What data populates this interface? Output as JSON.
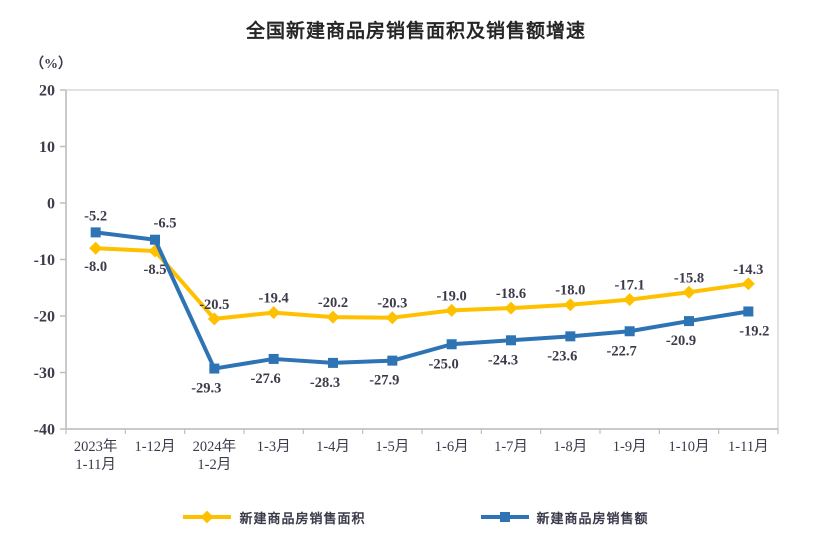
{
  "title": "全国新建商品房销售面积及销售额增速",
  "unit_label": "（%）",
  "chart_data": {
    "type": "line",
    "categories": [
      "2023年\n1-11月",
      "1-12月",
      "2024年\n1-2月",
      "1-3月",
      "1-4月",
      "1-5月",
      "1-6月",
      "1-7月",
      "1-8月",
      "1-9月",
      "1-10月",
      "1-11月"
    ],
    "series": [
      {
        "name": "新建商品房销售面积",
        "color": "#FFC000",
        "marker": "diamond",
        "values": [
          -8.0,
          -8.5,
          -20.5,
          -19.4,
          -20.2,
          -20.3,
          -19.0,
          -18.6,
          -18.0,
          -17.1,
          -15.8,
          -14.3
        ]
      },
      {
        "name": "新建商品房销售额",
        "color": "#2E74B5",
        "marker": "square",
        "values": [
          -5.2,
          -6.5,
          -29.3,
          -27.6,
          -28.3,
          -27.9,
          -25.0,
          -24.3,
          -23.6,
          -22.7,
          -20.9,
          -19.2
        ]
      }
    ],
    "ylabel": "（%）",
    "ylim": [
      -40,
      20
    ],
    "yticks": [
      20,
      10,
      0,
      -10,
      -20,
      -30,
      -40
    ],
    "grid": false,
    "legend_position": "bottom",
    "axis_color": "#BFBFBF",
    "border_color": "#D9D9D9",
    "label_color": "#3B3B4B"
  },
  "legend": {
    "items": [
      {
        "label": "新建商品房销售面积",
        "color": "#FFC000",
        "marker": "diamond"
      },
      {
        "label": "新建商品房销售额",
        "color": "#2E74B5",
        "marker": "square"
      }
    ]
  }
}
